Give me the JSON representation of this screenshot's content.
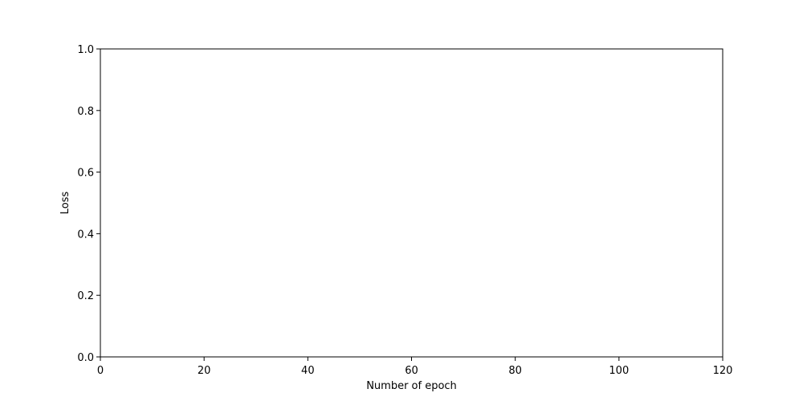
{
  "chart_data": {
    "type": "line",
    "title": "",
    "xlabel": "Number of epoch",
    "ylabel": "Loss",
    "xlim": [
      0,
      120
    ],
    "ylim": [
      0,
      1.0
    ],
    "x_ticks": [
      0,
      20,
      40,
      60,
      80,
      100,
      120
    ],
    "x_tick_labels": [
      "0",
      "20",
      "40",
      "60",
      "80",
      "100",
      "120"
    ],
    "y_ticks": [
      0,
      0.2,
      0.4,
      0.6,
      0.8,
      1.0
    ],
    "y_tick_labels": [
      "0.0",
      "0.2",
      "0.4",
      "0.6",
      "0.8",
      "1.0"
    ],
    "grid": false,
    "series": []
  },
  "colors": {
    "axes": "#000000",
    "background": "#ffffff"
  }
}
